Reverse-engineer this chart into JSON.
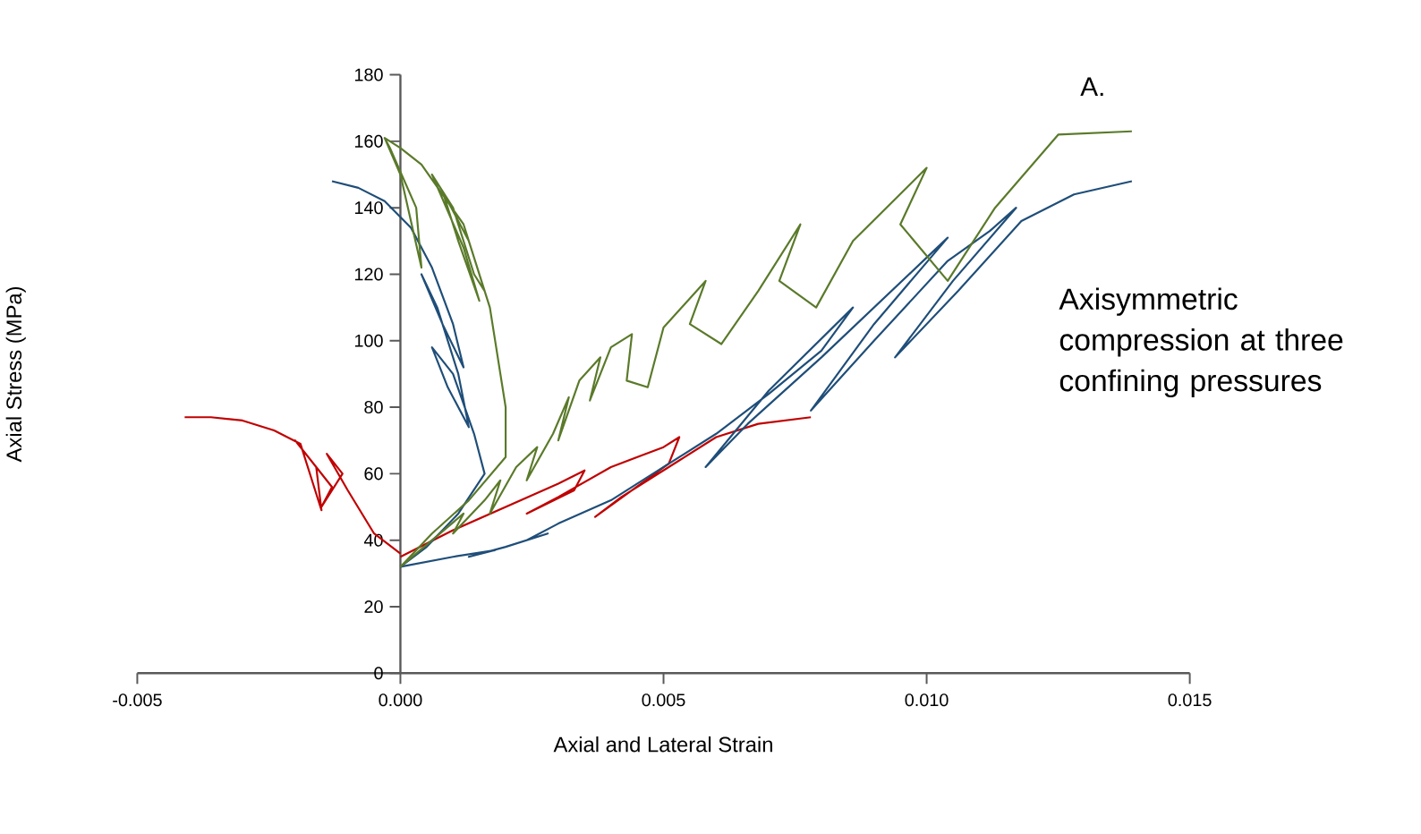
{
  "chart_data": {
    "type": "line",
    "xlabel": "Axial and Lateral Strain",
    "ylabel": "Axial Stress (MPa)",
    "annotations": [
      "A.",
      "Axisymmetric compression at three confining pressures"
    ],
    "xlim": [
      -0.005,
      0.015
    ],
    "ylim": [
      0,
      180
    ],
    "xticks": [
      {
        "value": -0.005,
        "label": "-0.005"
      },
      {
        "value": 0,
        "label": "0.000"
      },
      {
        "value": 0.005,
        "label": "0.005"
      },
      {
        "value": 0.01,
        "label": "0.010"
      },
      {
        "value": 0.015,
        "label": "0.015"
      }
    ],
    "yticks": [
      0,
      20,
      40,
      60,
      80,
      100,
      120,
      140,
      160,
      180
    ],
    "series": [
      {
        "color": "#c00000",
        "x": [
          0,
          -0.0005,
          -0.001,
          -0.0014,
          -0.0011,
          -0.0015,
          -0.0013,
          -0.0017,
          -0.002,
          -0.0016,
          -0.0015,
          -0.0019,
          -0.0024,
          -0.003,
          -0.0036,
          -0.0041
        ],
        "values": [
          36,
          42,
          55,
          66,
          60,
          50,
          56,
          64,
          70,
          62,
          49,
          69,
          73,
          76,
          77,
          77
        ]
      },
      {
        "color": "#c00000",
        "x": [
          0,
          0.001,
          0.002,
          0.003,
          0.0035,
          0.0033,
          0.0024,
          0.003,
          0.004,
          0.005,
          0.0053,
          0.0051,
          0.0037,
          0.0042,
          0.0053,
          0.006,
          0.0068,
          0.0078
        ],
        "values": [
          35,
          43,
          50,
          57,
          61,
          55,
          48,
          53,
          62,
          68,
          71,
          63,
          47,
          53,
          64,
          71,
          75,
          77
        ]
      },
      {
        "color": "#1f4e79",
        "x": [
          0,
          0.0005,
          0.0011,
          0.0016,
          0.0014,
          0.001,
          0.0006,
          0.0009,
          0.0013,
          0.0011,
          0.0007,
          0.0004,
          0.0008,
          0.0012,
          0.001,
          0.0006,
          0.0002,
          -0.0003,
          -0.0008,
          -0.0013
        ],
        "values": [
          32,
          38,
          48,
          60,
          72,
          90,
          98,
          86,
          74,
          90,
          110,
          120,
          105,
          92,
          105,
          122,
          134,
          142,
          146,
          148
        ]
      },
      {
        "color": "#1f4e79",
        "x": [
          0,
          0.001,
          0.0018,
          0.0013,
          0.002,
          0.0028,
          0.0024,
          0.003,
          0.004,
          0.005,
          0.006,
          0.007,
          0.008,
          0.0086,
          0.007,
          0.0058,
          0.0066,
          0.008,
          0.01,
          0.0104,
          0.009,
          0.0078,
          0.009,
          0.0104,
          0.0112,
          0.0117,
          0.0105,
          0.0094,
          0.0106,
          0.0118,
          0.0128,
          0.0139
        ],
        "values": [
          32,
          35,
          37,
          35,
          38,
          42,
          40,
          45,
          52,
          62,
          72,
          84,
          97,
          110,
          85,
          62,
          75,
          95,
          125,
          131,
          105,
          79,
          100,
          124,
          133,
          140,
          118,
          95,
          115,
          136,
          144,
          148
        ]
      },
      {
        "color": "#5a7a2a",
        "x": [
          0,
          0.0006,
          0.0013,
          0.002,
          0.002,
          0.0017,
          0.0013,
          0.0008,
          0.0011,
          0.0015,
          0.0012,
          0.0006,
          0.001,
          0.0014,
          0.0016,
          0.0012,
          0.0004,
          0,
          -0.0003,
          -0.0002,
          0.0003,
          0.0004,
          0,
          -0.0003
        ],
        "values": [
          32,
          42,
          52,
          65,
          80,
          110,
          130,
          145,
          130,
          112,
          128,
          150,
          140,
          120,
          115,
          135,
          153,
          158,
          161,
          158,
          140,
          122,
          150,
          161
        ]
      },
      {
        "color": "#5a7a2a",
        "x": [
          0,
          0.0006,
          0.0012,
          0.001,
          0.0016,
          0.0019,
          0.0017,
          0.0022,
          0.0026,
          0.0024,
          0.0029,
          0.0032,
          0.003,
          0.0034,
          0.0038,
          0.0036,
          0.004,
          0.0044,
          0.0043,
          0.0047,
          0.005,
          0.0058,
          0.0055,
          0.0061,
          0.0068,
          0.0076,
          0.0072,
          0.0079,
          0.0086,
          0.01,
          0.0095,
          0.0104,
          0.0113,
          0.0125,
          0.0139
        ],
        "values": [
          32,
          40,
          48,
          42,
          52,
          58,
          48,
          62,
          68,
          58,
          72,
          83,
          70,
          88,
          95,
          82,
          98,
          102,
          88,
          86,
          104,
          118,
          105,
          99,
          115,
          135,
          118,
          110,
          130,
          152,
          135,
          118,
          140,
          162,
          163
        ]
      }
    ]
  }
}
